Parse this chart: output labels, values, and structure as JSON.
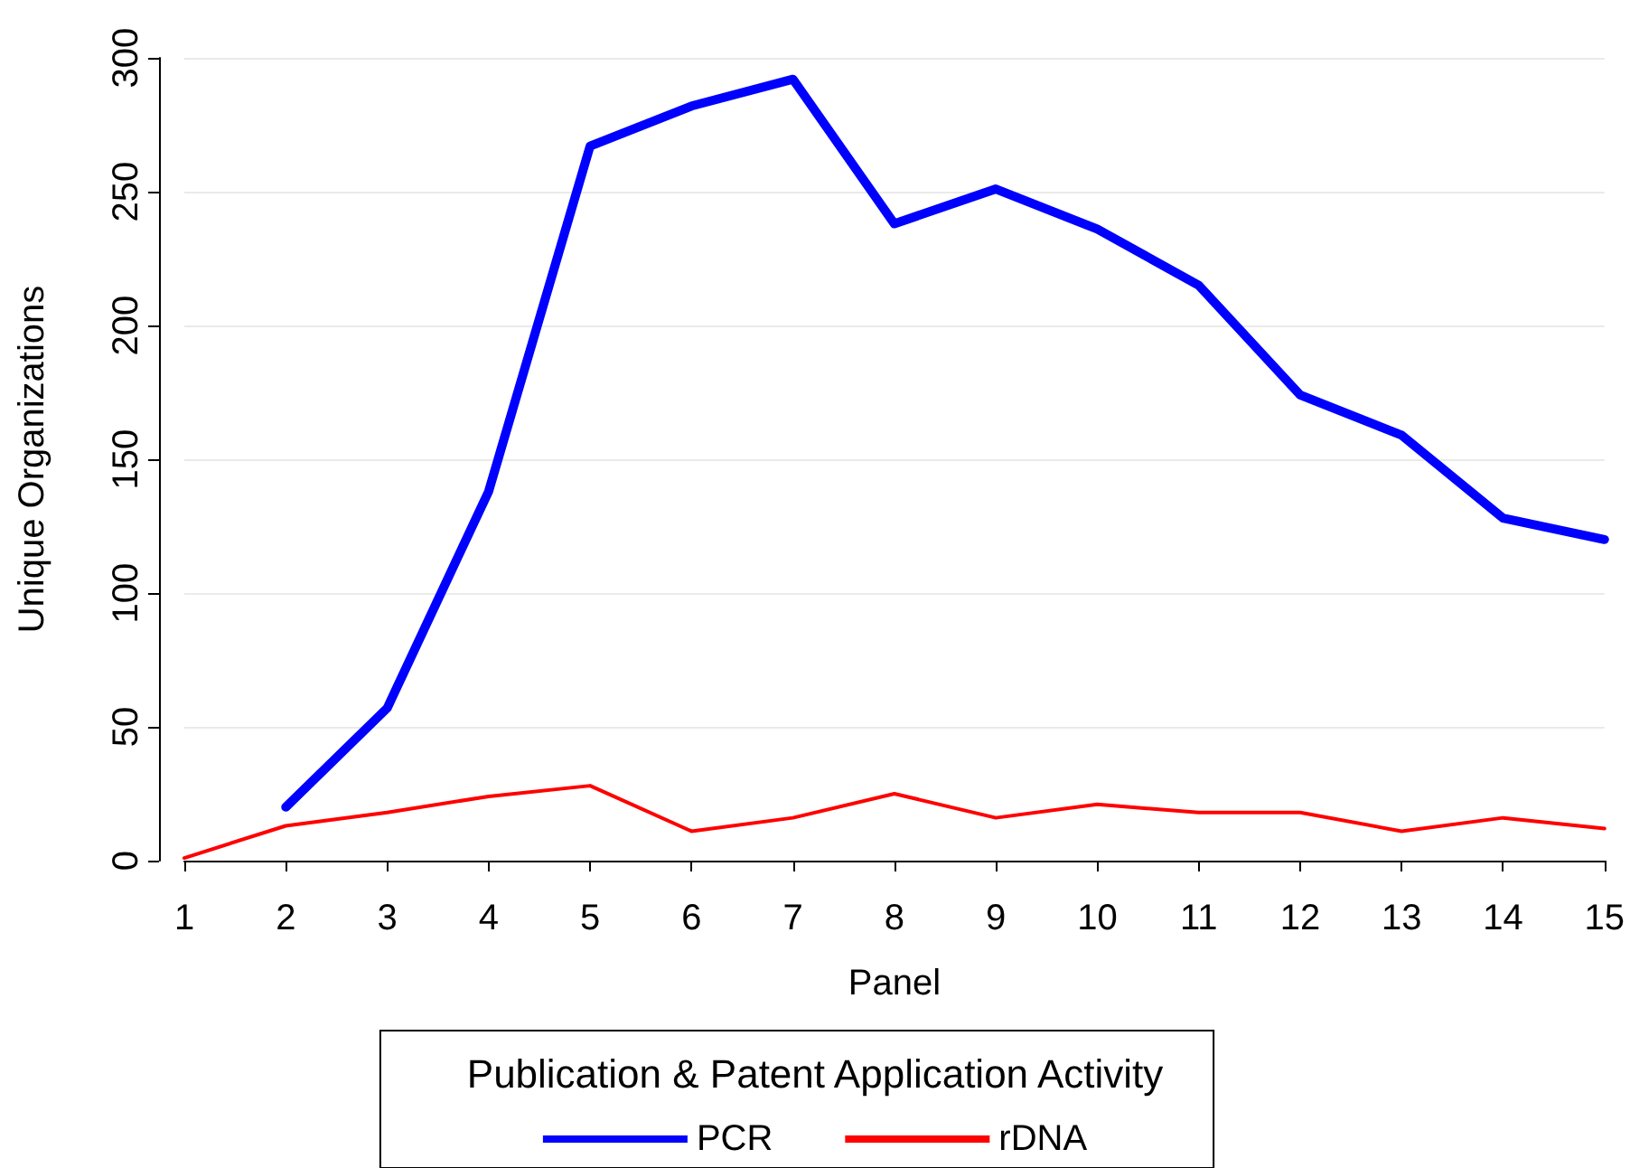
{
  "chart_data": {
    "type": "line",
    "xlabel": "Panel",
    "ylabel": "Unique Organizations",
    "legend_title": "Publication & Patent Application Activity",
    "x": [
      1,
      2,
      3,
      4,
      5,
      6,
      7,
      8,
      9,
      10,
      11,
      12,
      13,
      14,
      15
    ],
    "series": [
      {
        "name": "PCR",
        "color": "#0000ff",
        "values": [
          null,
          20,
          57,
          138,
          267,
          282,
          292,
          238,
          251,
          236,
          215,
          174,
          159,
          128,
          120
        ]
      },
      {
        "name": "rDNA",
        "color": "#ff0000",
        "values": [
          1,
          13,
          18,
          24,
          28,
          11,
          16,
          25,
          16,
          21,
          18,
          18,
          11,
          16,
          12
        ]
      }
    ],
    "xlim": [
      1,
      15
    ],
    "xticks": [
      1,
      2,
      3,
      4,
      5,
      6,
      7,
      8,
      9,
      10,
      11,
      12,
      13,
      14,
      15
    ],
    "ylim": [
      0,
      300
    ],
    "yticks": [
      0,
      50,
      100,
      150,
      200,
      250,
      300
    ],
    "grid": "y",
    "legend": "bottom",
    "marker": "none",
    "line_style": "solid"
  }
}
